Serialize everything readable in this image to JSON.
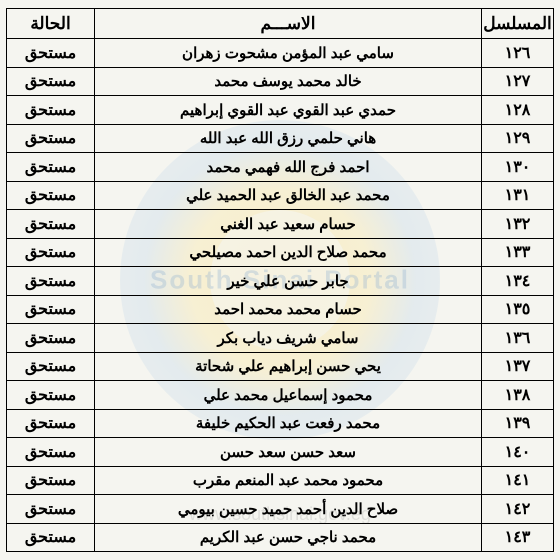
{
  "watermark": {
    "text": "South Sinai   Portal",
    "url": "www.southsinai.gov.eg"
  },
  "table": {
    "headers": {
      "serial": "المسلسل",
      "name": "الاســـم",
      "status": "الحالة"
    },
    "rows": [
      {
        "serial": "١٢٦",
        "name": "سامي عبد المؤمن مشحوت زهران",
        "status": "مستحق"
      },
      {
        "serial": "١٢٧",
        "name": "خالد محمد يوسف محمد",
        "status": "مستحق"
      },
      {
        "serial": "١٢٨",
        "name": "حمدي عبد القوي عبد القوي إبراهيم",
        "status": "مستحق"
      },
      {
        "serial": "١٢٩",
        "name": "هاني حلمي رزق الله عبد الله",
        "status": "مستحق"
      },
      {
        "serial": "١٣٠",
        "name": "احمد فرج الله فهمي محمد",
        "status": "مستحق"
      },
      {
        "serial": "١٣١",
        "name": "محمد عبد الخالق عبد الحميد علي",
        "status": "مستحق"
      },
      {
        "serial": "١٣٢",
        "name": "حسام سعيد عبد الغني",
        "status": "مستحق"
      },
      {
        "serial": "١٣٣",
        "name": "محمد صلاح الدين احمد مصيلحي",
        "status": "مستحق"
      },
      {
        "serial": "١٣٤",
        "name": "جابر حسن علي خير",
        "status": "مستحق"
      },
      {
        "serial": "١٣٥",
        "name": "حسام محمد محمد احمد",
        "status": "مستحق"
      },
      {
        "serial": "١٣٦",
        "name": "سامي شريف دياب بكر",
        "status": "مستحق"
      },
      {
        "serial": "١٣٧",
        "name": "يحي حسن إبراهيم علي شحاتة",
        "status": "مستحق"
      },
      {
        "serial": "١٣٨",
        "name": "محمود إسماعيل محمد علي",
        "status": "مستحق"
      },
      {
        "serial": "١٣٩",
        "name": "محمد رفعت عبد الحكيم خليفة",
        "status": "مستحق"
      },
      {
        "serial": "١٤٠",
        "name": "سعد حسن سعد حسن",
        "status": "مستحق"
      },
      {
        "serial": "١٤١",
        "name": "محمود محمد عبد المنعم مقرب",
        "status": "مستحق"
      },
      {
        "serial": "١٤٢",
        "name": "صلاح الدين أحمد حميد حسين بيومي",
        "status": "مستحق"
      },
      {
        "serial": "١٤٣",
        "name": "محمد ناجي حسن عبد الكريم",
        "status": "مستحق"
      }
    ]
  }
}
